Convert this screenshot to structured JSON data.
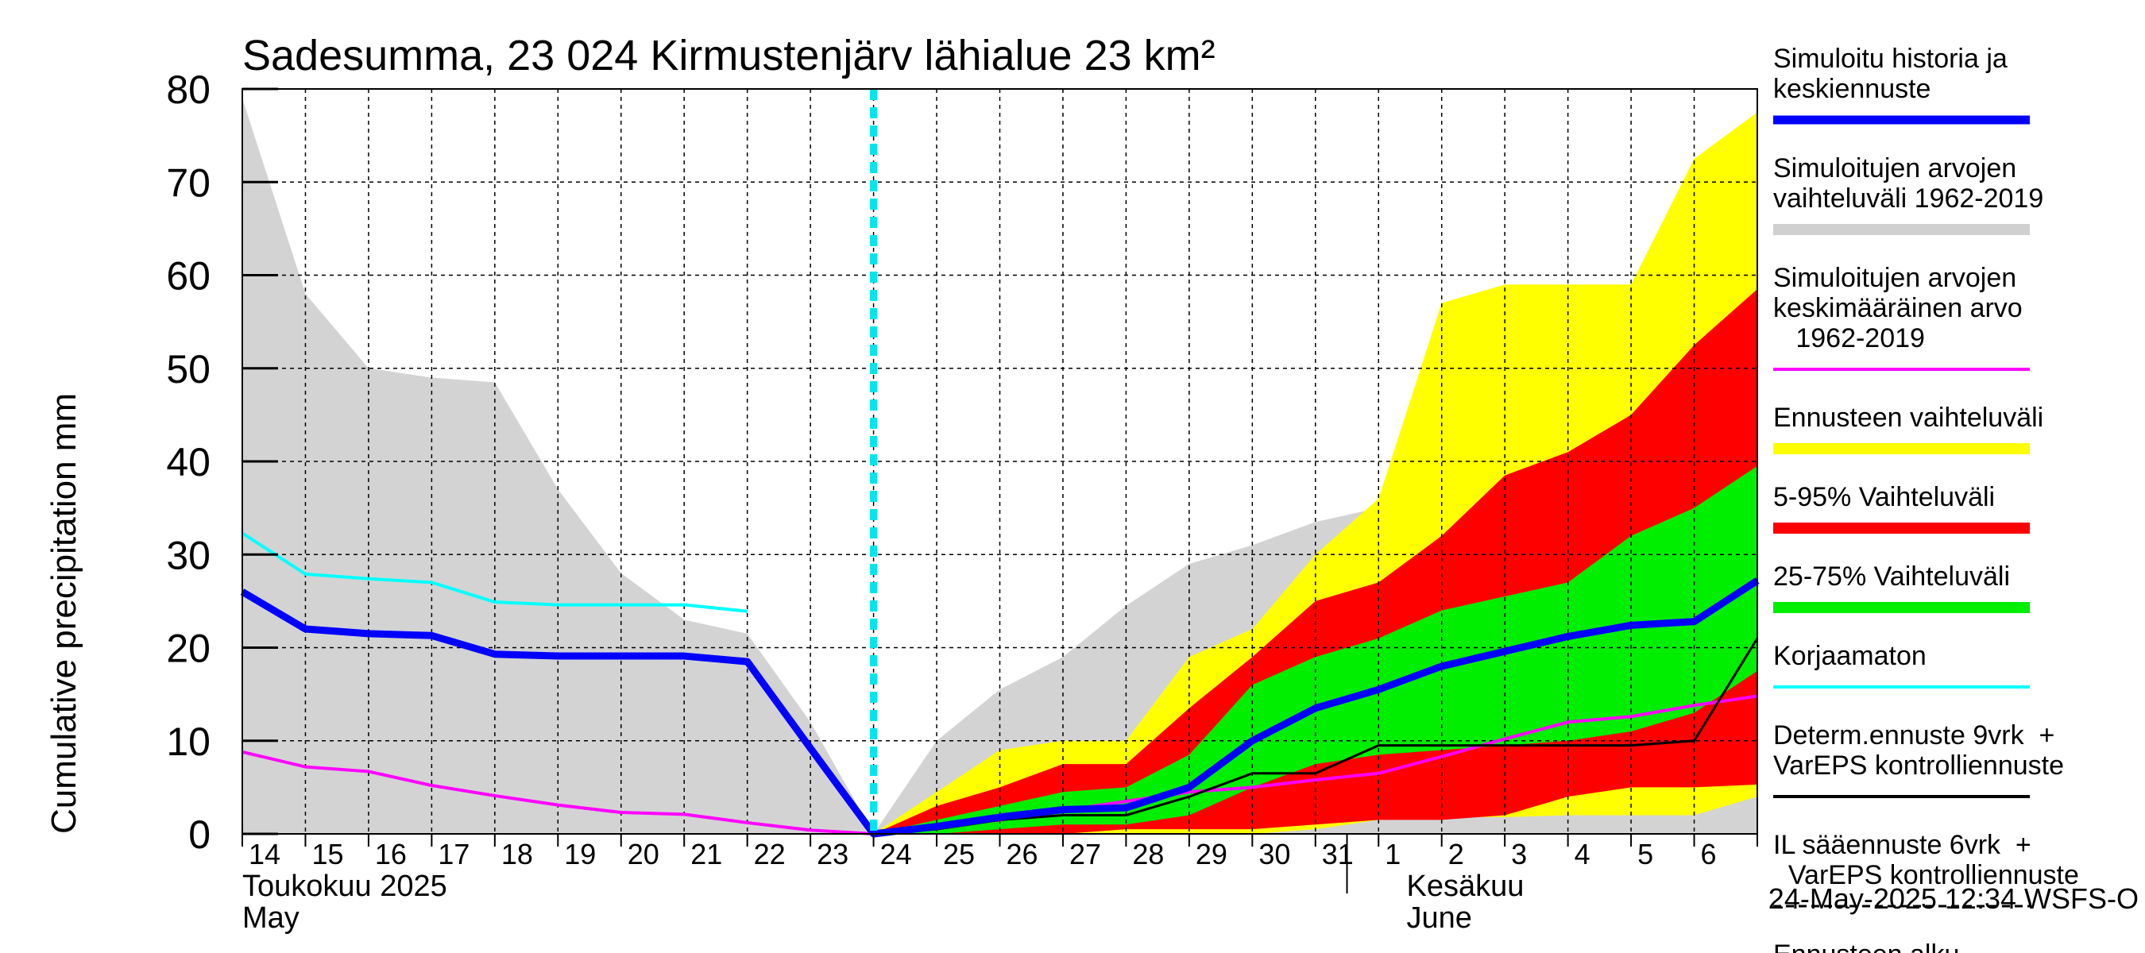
{
  "chart_data": {
    "type": "area",
    "title": "Sadesumma, 23 024 Kirmustenjärv lähialue 23 km²",
    "ylabel": "Cumulative precipitation   mm",
    "ylim": [
      0,
      80
    ],
    "yticks": [
      "0",
      "10",
      "20",
      "30",
      "40",
      "50",
      "60",
      "70",
      "80"
    ],
    "xlim": [
      0,
      24
    ],
    "xticks": [
      "14",
      "15",
      "16",
      "17",
      "18",
      "19",
      "20",
      "21",
      "22",
      "23",
      "24",
      "25",
      "26",
      "27",
      "28",
      "29",
      "30",
      "31",
      "1",
      "2",
      "3",
      "4",
      "5",
      "6"
    ],
    "month_labels": [
      {
        "text1": "Toukokuu  2025",
        "text2": "May"
      },
      {
        "text1": "Kesäkuu",
        "text2": "June"
      }
    ],
    "timestamp": "24-May-2025 12:34 WSFS-O",
    "forecast_start_x": 10,
    "grid": true,
    "legend_position": "right",
    "legend": [
      {
        "label": "Simuloitu historia ja keskiennuste",
        "lines": [
          "Simuloitu historia ja",
          "keskiennuste"
        ],
        "color": "#0000ff",
        "style": "thick"
      },
      {
        "label": "Simuloitujen arvojen vaihteluväli 1962-2019",
        "lines": [
          "Simuloitujen arvojen",
          "vaihteluväli 1962-2019"
        ],
        "color": "#d0d0d0",
        "style": "band"
      },
      {
        "label": "Simuloitujen arvojen keskimääräinen arvo 1962-2019",
        "lines": [
          "Simuloitujen arvojen",
          "keskimääräinen arvo",
          "   1962-2019"
        ],
        "color": "#ff00ff",
        "style": "line"
      },
      {
        "label": "Ennusteen vaihteluväli",
        "lines": [
          "Ennusteen vaihteluväli"
        ],
        "color": "#ffff00",
        "style": "band"
      },
      {
        "label": "5-95% Vaihteluväli",
        "lines": [
          "5-95% Vaihteluväli"
        ],
        "color": "#ff0000",
        "style": "band"
      },
      {
        "label": "25-75% Vaihteluväli",
        "lines": [
          "25-75% Vaihteluväli"
        ],
        "color": "#00ee00",
        "style": "band"
      },
      {
        "label": "Korjaamaton",
        "lines": [
          "Korjaamaton"
        ],
        "color": "#00ffff",
        "style": "line"
      },
      {
        "label": "Determ.ennuste 9vrk + VarEPS kontrolliennuste",
        "lines": [
          "Determ.ennuste 9vrk  +",
          "VarEPS kontrolliennuste"
        ],
        "color": "#000000",
        "style": "line"
      },
      {
        "label": "IL sääennuste 6vrk + VarEPS kontrolliennuste",
        "lines": [
          "IL sääennuste 6vrk  +",
          "  VarEPS kontrolliennuste"
        ],
        "color": "#000000",
        "style": "dashed"
      },
      {
        "label": "Ennusteen alku",
        "lines": [
          "Ennusteen alku"
        ],
        "color": "#00ffff",
        "style": "dotted"
      }
    ],
    "series": [
      {
        "name": "Simuloitujen arvojen vaihteluväli 1962-2019",
        "kind": "band",
        "color": "#d3d3d3",
        "x": [
          0,
          1,
          2,
          3,
          4,
          5,
          6,
          7,
          8,
          9,
          10,
          11,
          12,
          13,
          14,
          15,
          16,
          17,
          18,
          19,
          20,
          21,
          22,
          23,
          24
        ],
        "upper": [
          79,
          58,
          50,
          49,
          48.5,
          37,
          28,
          23,
          21.5,
          12,
          0,
          10,
          15.5,
          19,
          24.5,
          29,
          31,
          33.5,
          35,
          38,
          39,
          50,
          52.5,
          53,
          53
        ],
        "lower": [
          0,
          0,
          0,
          0,
          0,
          0,
          0,
          0,
          0,
          0,
          0,
          0,
          0,
          0,
          0,
          0,
          0,
          0,
          0,
          0,
          0,
          0,
          0,
          0,
          0
        ]
      },
      {
        "name": "Ennusteen vaihteluväli",
        "kind": "band",
        "color": "#ffff00",
        "x": [
          10,
          11,
          12,
          13,
          14,
          15,
          16,
          17,
          18,
          19,
          20,
          21,
          22,
          23,
          24
        ],
        "upper": [
          0,
          4.5,
          9,
          10,
          10,
          19,
          22,
          30,
          36,
          57,
          59,
          59,
          59,
          72.5,
          77.5
        ],
        "lower": [
          0,
          0,
          0,
          0,
          0,
          0,
          0,
          0.5,
          1.5,
          1.8,
          1.8,
          2,
          2,
          2,
          4
        ]
      },
      {
        "name": "5-95% Vaihteluväli",
        "kind": "band",
        "color": "#ff0000",
        "x": [
          10,
          11,
          12,
          13,
          14,
          15,
          16,
          17,
          18,
          19,
          20,
          21,
          22,
          23,
          24
        ],
        "upper": [
          0,
          3,
          5,
          7.5,
          7.5,
          13.5,
          19,
          25,
          27,
          32,
          38.5,
          41,
          45,
          52.5,
          58.5
        ],
        "lower": [
          0,
          0,
          0,
          0,
          0.5,
          0.5,
          0.5,
          1,
          1.5,
          1.5,
          2,
          4,
          5,
          5,
          5.3
        ]
      },
      {
        "name": "25-75% Vaihteluväli",
        "kind": "band",
        "color": "#00ee00",
        "x": [
          10,
          11,
          12,
          13,
          14,
          15,
          16,
          17,
          18,
          19,
          20,
          21,
          22,
          23,
          24
        ],
        "upper": [
          0,
          1.5,
          3,
          4.5,
          5,
          8.5,
          16,
          19,
          21,
          24,
          25.5,
          27,
          32,
          35,
          39.5
        ],
        "lower": [
          0,
          0,
          0.5,
          1,
          1,
          2,
          5,
          7.5,
          8.5,
          9,
          9.5,
          10,
          11,
          13,
          17.5
        ]
      },
      {
        "name": "Simuloitujen arvojen keskimääräinen arvo 1962-2019",
        "kind": "line",
        "color": "#ff00ff",
        "width": 4,
        "x": [
          0,
          1,
          2,
          3,
          4,
          5,
          6,
          7,
          8,
          9,
          10,
          11,
          12,
          13,
          14,
          15,
          16,
          17,
          18,
          19,
          20,
          21,
          22,
          23,
          24
        ],
        "y": [
          8.8,
          7.2,
          6.7,
          5.2,
          4.1,
          3.1,
          2.3,
          2.1,
          1.2,
          0.4,
          0,
          0.8,
          1.5,
          2.5,
          3.5,
          4.5,
          5,
          5.8,
          6.5,
          8.3,
          10.2,
          12,
          12.6,
          13.8,
          14.8
        ]
      },
      {
        "name": "Korjaamaton",
        "kind": "line",
        "color": "#00ffff",
        "width": 4,
        "x": [
          0,
          1,
          2,
          3,
          4,
          5,
          6,
          7,
          8
        ],
        "y": [
          32.3,
          27.9,
          27.4,
          27.0,
          24.9,
          24.6,
          24.6,
          24.6,
          23.9
        ]
      },
      {
        "name": "Determ.ennuste 9vrk + VarEPS kontrolliennuste",
        "kind": "line",
        "color": "#000000",
        "width": 3,
        "x": [
          10,
          11,
          12,
          13,
          14,
          15,
          16,
          17,
          18,
          19,
          20,
          21,
          22,
          23,
          24
        ],
        "y": [
          0,
          0.5,
          1.5,
          2,
          2,
          4,
          6.5,
          6.5,
          9.5,
          9.5,
          9.5,
          9.5,
          9.5,
          10,
          21
        ]
      },
      {
        "name": "Simuloitu historia ja keskiennuste",
        "kind": "line",
        "color": "#0000ff",
        "width": 9,
        "x": [
          0,
          1,
          2,
          3,
          4,
          5,
          6,
          7,
          8,
          9,
          10,
          11,
          12,
          13,
          14,
          15,
          16,
          17,
          18,
          19,
          20,
          21,
          22,
          23,
          24
        ],
        "y": [
          26,
          22,
          21.5,
          21.3,
          19.3,
          19.1,
          19.1,
          19.1,
          18.5,
          9.2,
          0,
          0.8,
          1.8,
          2.6,
          2.8,
          5,
          10,
          13.5,
          15.5,
          18,
          19.6,
          21.2,
          22.4,
          22.8,
          27.2
        ]
      }
    ]
  }
}
